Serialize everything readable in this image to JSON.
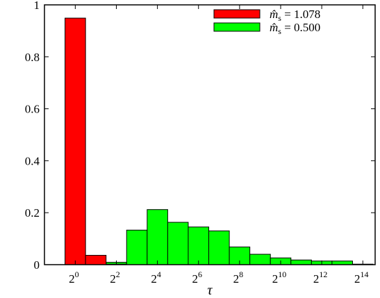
{
  "chart_data": {
    "type": "bar",
    "xlabel": "τ",
    "ylabel": "",
    "ylim": [
      0,
      1
    ],
    "x_scale": "log2",
    "x_range_log2": [
      -1.5,
      14.6
    ],
    "y_ticks": [
      "0",
      "0.2",
      "0.4",
      "0.6",
      "0.8",
      "1"
    ],
    "x_ticks": [
      {
        "base": "2",
        "exp": "0"
      },
      {
        "base": "2",
        "exp": "2"
      },
      {
        "base": "2",
        "exp": "4"
      },
      {
        "base": "2",
        "exp": "6"
      },
      {
        "base": "2",
        "exp": "8"
      },
      {
        "base": "2",
        "exp": "10"
      },
      {
        "base": "2",
        "exp": "12"
      },
      {
        "base": "2",
        "exp": "14"
      }
    ],
    "bin_edges_log2": [
      -0.5,
      0.5,
      1.5,
      2.5,
      3.5,
      4.5,
      5.5,
      6.5,
      7.5,
      8.5,
      9.5,
      10.5,
      11.5,
      12.5,
      13.5,
      14.5
    ],
    "series": [
      {
        "name_main": "m̂",
        "name_sub": "s",
        "name_value": " = 1.078",
        "color": "#ff0000",
        "values": [
          0.949,
          0.036,
          0.002
        ]
      },
      {
        "name_main": "m̂",
        "name_sub": "s",
        "name_value": " = 0.500",
        "color": "#00ff00",
        "values": [
          0,
          0,
          0.009,
          0.133,
          0.212,
          0.163,
          0.145,
          0.13,
          0.068,
          0.04,
          0.026,
          0.018,
          0.014,
          0.014,
          0.002
        ]
      }
    ],
    "legend_position": "top-right",
    "grid": false
  }
}
